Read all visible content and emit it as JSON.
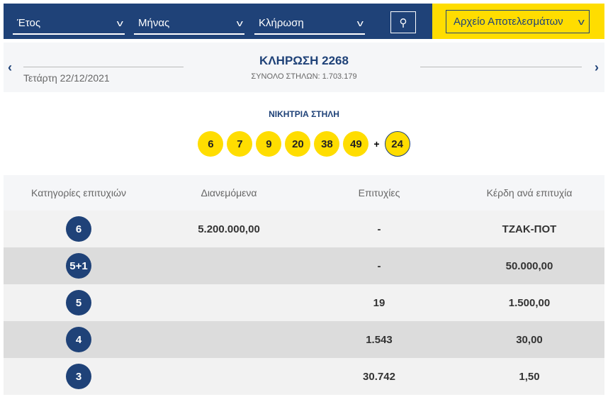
{
  "filters": {
    "year": "Έτος",
    "month": "Μήνας",
    "draw": "Κλήρωση",
    "archive": "Αρχείο Αποτελεσμάτων"
  },
  "draw": {
    "title": "ΚΛΗΡΩΣΗ 2268",
    "date": "Τετάρτη 22/12/2021",
    "total_columns": "ΣΥΝΟΛΟ ΣΤΗΛΩΝ: 1.703.179"
  },
  "winning": {
    "label": "ΝΙΚΗΤΡΙΑ ΣΤΗΛΗ",
    "numbers": [
      "6",
      "7",
      "9",
      "20",
      "38",
      "49"
    ],
    "plus": "+",
    "bonus": "24"
  },
  "table": {
    "headers": [
      "Κατηγορίες επιτυχιών",
      "Διανεμόμενα",
      "Επιτυχίες",
      "Κέρδη ανά επιτυχία"
    ],
    "rows": [
      {
        "category": "6",
        "distributed": "5.200.000,00",
        "winners": "-",
        "prize": "ΤΖΑΚ-ΠΟΤ"
      },
      {
        "category": "5+1",
        "distributed": "",
        "winners": "-",
        "prize": "50.000,00"
      },
      {
        "category": "5",
        "distributed": "",
        "winners": "19",
        "prize": "1.500,00"
      },
      {
        "category": "4",
        "distributed": "",
        "winners": "1.543",
        "prize": "30,00"
      },
      {
        "category": "3",
        "distributed": "",
        "winners": "30.742",
        "prize": "1,50"
      }
    ]
  },
  "colors": {
    "blue": "#1f4278",
    "yellow": "#ffdd00"
  }
}
